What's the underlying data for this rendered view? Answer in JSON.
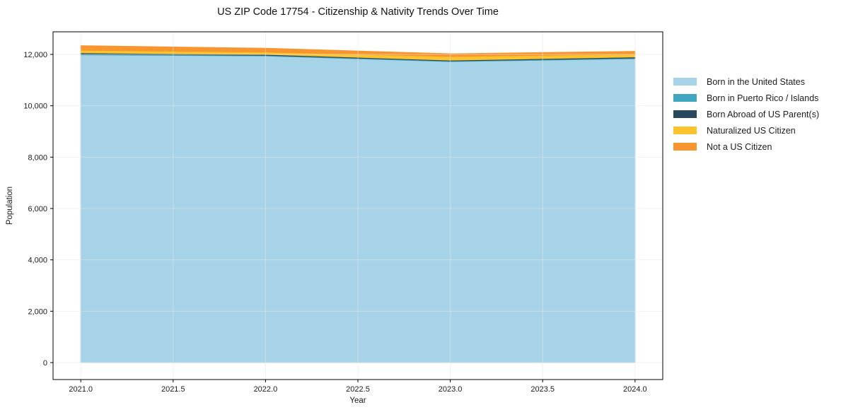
{
  "title": "US ZIP Code 17754 - Citizenship & Nativity Trends Over Time",
  "chart_data": {
    "type": "area",
    "stacked": true,
    "title": "US ZIP Code 17754 - Citizenship & Nativity Trends Over Time",
    "xlabel": "Year",
    "ylabel": "Population",
    "x": [
      2021,
      2022,
      2023,
      2024
    ],
    "series": [
      {
        "name": "Born in the United States",
        "color": "#a7d3e8",
        "values": [
          11980,
          11940,
          11720,
          11830
        ]
      },
      {
        "name": "Born in Puerto Rico / Islands",
        "color": "#41a6c0",
        "values": [
          35,
          25,
          25,
          30
        ]
      },
      {
        "name": "Born Abroad of US Parent(s)",
        "color": "#28495c",
        "values": [
          45,
          35,
          30,
          40
        ]
      },
      {
        "name": "Naturalized US Citizen",
        "color": "#fcc32d",
        "values": [
          100,
          90,
          140,
          110
        ]
      },
      {
        "name": "Not a US Citizen",
        "color": "#f7952e",
        "values": [
          180,
          150,
          110,
          110
        ]
      }
    ],
    "x_tick_labels": [
      "2021.0",
      "2021.5",
      "2022.0",
      "2022.5",
      "2023.0",
      "2023.5",
      "2024.0"
    ],
    "x_tick_values": [
      2021.0,
      2021.5,
      2022.0,
      2022.5,
      2023.0,
      2023.5,
      2024.0
    ],
    "y_tick_labels": [
      "0",
      "2,000",
      "4,000",
      "6,000",
      "8,000",
      "10,000",
      "12,000"
    ],
    "y_tick_values": [
      0,
      2000,
      4000,
      6000,
      8000,
      10000,
      12000
    ],
    "xlim": [
      2020.85,
      2024.15
    ],
    "ylim": [
      -660,
      12880
    ],
    "grid": true,
    "legend_position": "right",
    "colors": {
      "gridline": "#e6e6e6",
      "spine": "#000000",
      "tick_label": "#1a1a1a"
    }
  }
}
